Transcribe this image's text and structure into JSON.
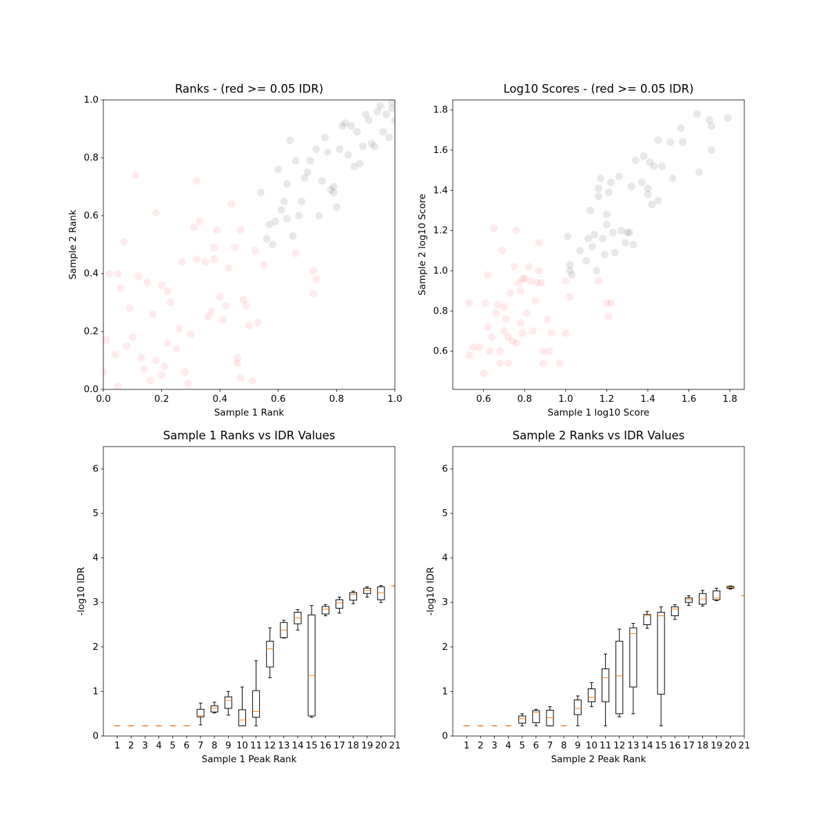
{
  "chart_data": [
    {
      "type": "scatter",
      "title": "Ranks - (red >= 0.05 IDR)",
      "xlabel": "Sample 1 Rank",
      "ylabel": "Sample 2 Rank",
      "xlim": [
        0,
        1
      ],
      "ylim": [
        0,
        1
      ],
      "xticks": [
        {
          "value": 0,
          "label": "0.0"
        },
        0.2,
        0.4,
        0.6,
        0.8,
        {
          "value": 1,
          "label": "1.0"
        }
      ],
      "yticks": [
        {
          "value": 0,
          "label": "0.0"
        },
        0.2,
        0.4,
        0.6,
        0.8,
        {
          "value": 1,
          "label": "1.0"
        }
      ],
      "series": [
        {
          "color": "red",
          "alpha": 0.08,
          "x": [
            0.02,
            0.01,
            0.0,
            0.04,
            0.05,
            0.06,
            0.07,
            0.08,
            0.09,
            0.1,
            0.11,
            0.12,
            0.13,
            0.14,
            0.15,
            0.16,
            0.17,
            0.18,
            0.18,
            0.2,
            0.2,
            0.21,
            0.22,
            0.22,
            0.23,
            0.25,
            0.26,
            0.27,
            0.28,
            0.29,
            0.3,
            0.31,
            0.32,
            0.32,
            0.33,
            0.35,
            0.36,
            0.37,
            0.38,
            0.39,
            0.4,
            0.41,
            0.42,
            0.43,
            0.44,
            0.45,
            0.46,
            0.47,
            0.48,
            0.49,
            0.5,
            0.51,
            0.52,
            0.53,
            0.55,
            0.66,
            0.72,
            0.73,
            0.72,
            0.05,
            0.47,
            0.38,
            0.46
          ],
          "y": [
            0.4,
            0.17,
            0.06,
            0.12,
            0.4,
            0.35,
            0.51,
            0.15,
            0.28,
            0.18,
            0.74,
            0.39,
            0.11,
            0.07,
            0.37,
            0.03,
            0.26,
            0.1,
            0.61,
            0.05,
            0.36,
            0.08,
            0.34,
            0.16,
            0.3,
            0.14,
            0.21,
            0.44,
            0.06,
            0.02,
            0.19,
            0.56,
            0.72,
            0.45,
            0.58,
            0.44,
            0.25,
            0.27,
            0.49,
            0.55,
            0.32,
            0.24,
            0.29,
            0.42,
            0.64,
            0.49,
            0.09,
            0.04,
            0.31,
            0.29,
            0.22,
            0.03,
            0.48,
            0.23,
            0.43,
            0.47,
            0.41,
            0.38,
            0.33,
            0.01,
            0.55,
            0.45,
            0.11
          ]
        },
        {
          "color": "black",
          "alpha": 0.09,
          "x": [
            0.54,
            0.56,
            0.57,
            0.58,
            0.59,
            0.6,
            0.61,
            0.62,
            0.63,
            0.64,
            0.65,
            0.66,
            0.67,
            0.68,
            0.69,
            0.7,
            0.71,
            0.73,
            0.74,
            0.75,
            0.76,
            0.77,
            0.78,
            0.79,
            0.8,
            0.81,
            0.82,
            0.83,
            0.84,
            0.85,
            0.86,
            0.87,
            0.88,
            0.89,
            0.9,
            0.91,
            0.92,
            0.93,
            0.94,
            0.95,
            0.96,
            0.97,
            0.98,
            0.99,
            1.0,
            0.99,
            0.79,
            0.63
          ],
          "y": [
            0.68,
            0.52,
            0.57,
            0.5,
            0.58,
            0.76,
            0.62,
            0.65,
            0.71,
            0.86,
            0.53,
            0.79,
            0.6,
            0.65,
            0.73,
            0.75,
            0.79,
            0.83,
            0.6,
            0.72,
            0.87,
            0.82,
            0.69,
            0.7,
            0.63,
            0.83,
            0.91,
            0.92,
            0.81,
            0.91,
            0.77,
            0.89,
            0.78,
            0.84,
            0.95,
            0.93,
            0.85,
            0.84,
            0.96,
            0.98,
            0.89,
            0.95,
            0.87,
            0.97,
            0.93,
            0.99,
            0.68,
            0.59
          ]
        }
      ]
    },
    {
      "type": "scatter",
      "title": "Log10 Scores - (red >= 0.05 IDR)",
      "xlabel": "Sample 1 log10 Score",
      "ylabel": "Sample 2 log10 Score",
      "xlim": [
        0.45,
        1.87
      ],
      "ylim": [
        0.41,
        1.85
      ],
      "xticks": [
        0.6,
        0.8,
        {
          "value": 1,
          "label": "1.0"
        },
        1.2,
        1.4,
        1.6,
        1.8
      ],
      "yticks": [
        0.6,
        0.8,
        {
          "value": 1,
          "label": "1.0"
        },
        1.2,
        1.4,
        1.6,
        1.8
      ],
      "series": [
        {
          "color": "red",
          "alpha": 0.08,
          "x": [
            0.53,
            0.53,
            0.55,
            0.58,
            0.6,
            0.61,
            0.62,
            0.62,
            0.63,
            0.64,
            0.65,
            0.66,
            0.67,
            0.68,
            0.68,
            0.69,
            0.7,
            0.7,
            0.71,
            0.72,
            0.72,
            0.73,
            0.74,
            0.75,
            0.76,
            0.77,
            0.78,
            0.79,
            0.8,
            0.81,
            0.82,
            0.83,
            0.84,
            0.85,
            0.86,
            0.87,
            0.88,
            0.89,
            0.89,
            0.91,
            0.92,
            0.93,
            0.97,
            1.0,
            1.0,
            1.02,
            1.16,
            1.2,
            1.21,
            1.22,
            0.87,
            0.79,
            0.76,
            0.78
          ],
          "y": [
            0.58,
            0.84,
            0.62,
            0.62,
            0.49,
            0.84,
            0.98,
            0.72,
            0.6,
            0.67,
            1.21,
            0.79,
            0.83,
            0.6,
            0.54,
            1.1,
            0.7,
            0.82,
            0.76,
            0.54,
            0.67,
            0.89,
            0.65,
            1.02,
            1.2,
            0.94,
            0.9,
            0.69,
            0.96,
            0.79,
            1.02,
            0.95,
            0.7,
            0.85,
            0.94,
            1.0,
            0.94,
            0.6,
            0.54,
            0.76,
            0.6,
            0.69,
            0.54,
            0.95,
            0.69,
            0.87,
            0.95,
            0.84,
            0.77,
            0.84,
            1.14,
            0.96,
            0.64,
            0.74
          ]
        },
        {
          "color": "black",
          "alpha": 0.09,
          "x": [
            1.01,
            1.02,
            1.02,
            1.03,
            1.07,
            1.1,
            1.11,
            1.12,
            1.13,
            1.14,
            1.15,
            1.16,
            1.17,
            1.18,
            1.19,
            1.2,
            1.2,
            1.21,
            1.22,
            1.24,
            1.26,
            1.27,
            1.29,
            1.3,
            1.31,
            1.32,
            1.33,
            1.34,
            1.37,
            1.38,
            1.4,
            1.4,
            1.41,
            1.42,
            1.43,
            1.45,
            1.45,
            1.47,
            1.51,
            1.52,
            1.56,
            1.57,
            1.64,
            1.65,
            1.7,
            1.71,
            1.71,
            1.79,
            1.16,
            1.23
          ],
          "y": [
            1.17,
            1.0,
            1.03,
            0.98,
            1.1,
            1.05,
            1.16,
            1.3,
            1.12,
            1.18,
            1.0,
            1.37,
            1.46,
            1.16,
            1.08,
            1.23,
            1.28,
            1.39,
            1.44,
            1.09,
            1.47,
            1.2,
            1.14,
            1.19,
            1.19,
            1.42,
            1.13,
            1.55,
            1.44,
            1.57,
            1.41,
            1.38,
            1.54,
            1.33,
            1.52,
            1.35,
            1.65,
            1.52,
            1.64,
            1.46,
            1.71,
            1.64,
            1.78,
            1.49,
            1.75,
            1.72,
            1.6,
            1.76,
            1.41,
            1.19
          ]
        }
      ]
    },
    {
      "type": "box",
      "title": "Sample 1 Ranks vs IDR Values",
      "xlabel": "Sample 1 Peak Rank",
      "ylabel": "-log10 IDR",
      "xlim": [
        0,
        21
      ],
      "ylim": [
        0,
        6.5
      ],
      "yticks": [
        0,
        1,
        2,
        3,
        4,
        5,
        6
      ],
      "median_color": "#ff7f0e",
      "categories": [
        "1",
        "2",
        "3",
        "4",
        "5",
        "6",
        "7",
        "8",
        "9",
        "10",
        "11",
        "12",
        "13",
        "14",
        "15",
        "16",
        "17",
        "18",
        "19",
        "20",
        "21"
      ],
      "boxes": [
        {
          "whislo": 0.23,
          "q1": 0.23,
          "med": 0.23,
          "q3": 0.23,
          "whishi": 0.23
        },
        {
          "whislo": 0.23,
          "q1": 0.23,
          "med": 0.23,
          "q3": 0.23,
          "whishi": 0.23
        },
        {
          "whislo": 0.23,
          "q1": 0.23,
          "med": 0.23,
          "q3": 0.23,
          "whishi": 0.23
        },
        {
          "whislo": 0.23,
          "q1": 0.23,
          "med": 0.23,
          "q3": 0.23,
          "whishi": 0.23
        },
        {
          "whislo": 0.23,
          "q1": 0.23,
          "med": 0.23,
          "q3": 0.23,
          "whishi": 0.23
        },
        {
          "whislo": 0.23,
          "q1": 0.23,
          "med": 0.23,
          "q3": 0.23,
          "whishi": 0.23
        },
        {
          "whislo": 0.25,
          "q1": 0.43,
          "med": 0.46,
          "q3": 0.6,
          "whishi": 0.74
        },
        {
          "whislo": 0.52,
          "q1": 0.54,
          "med": 0.63,
          "q3": 0.68,
          "whishi": 0.76
        },
        {
          "whislo": 0.47,
          "q1": 0.62,
          "med": 0.8,
          "q3": 0.88,
          "whishi": 1.0
        },
        {
          "whislo": 0.23,
          "q1": 0.23,
          "med": 0.36,
          "q3": 0.59,
          "whishi": 1.1
        },
        {
          "whislo": 0.23,
          "q1": 0.42,
          "med": 0.55,
          "q3": 1.02,
          "whishi": 1.69
        },
        {
          "whislo": 1.31,
          "q1": 1.55,
          "med": 1.96,
          "q3": 2.13,
          "whishi": 2.43
        },
        {
          "whislo": 2.2,
          "q1": 2.21,
          "med": 2.38,
          "q3": 2.55,
          "whishi": 2.6
        },
        {
          "whislo": 2.38,
          "q1": 2.52,
          "med": 2.65,
          "q3": 2.78,
          "whishi": 2.84
        },
        {
          "whislo": 0.42,
          "q1": 0.45,
          "med": 1.36,
          "q3": 2.72,
          "whishi": 2.93
        },
        {
          "whislo": 2.7,
          "q1": 2.74,
          "med": 2.85,
          "q3": 2.91,
          "whishi": 2.95
        },
        {
          "whislo": 2.76,
          "q1": 2.87,
          "med": 2.99,
          "q3": 3.06,
          "whishi": 3.12
        },
        {
          "whislo": 2.97,
          "q1": 3.05,
          "med": 3.18,
          "q3": 3.22,
          "whishi": 3.25
        },
        {
          "whislo": 3.12,
          "q1": 3.2,
          "med": 3.27,
          "q3": 3.32,
          "whishi": 3.35
        },
        {
          "whislo": 3.0,
          "q1": 3.06,
          "med": 3.22,
          "q3": 3.35,
          "whishi": 3.38
        },
        {
          "whislo": 3.37,
          "q1": 3.37,
          "med": 3.37,
          "q3": 3.37,
          "whishi": 3.37
        }
      ]
    },
    {
      "type": "box",
      "title": "Sample 2 Ranks vs IDR Values",
      "xlabel": "Sample 2 Peak Rank",
      "ylabel": "-log10 IDR",
      "xlim": [
        0,
        21
      ],
      "ylim": [
        0,
        6.5
      ],
      "yticks": [
        0,
        1,
        2,
        3,
        4,
        5,
        6
      ],
      "median_color": "#ff7f0e",
      "categories": [
        "1",
        "2",
        "3",
        "4",
        "5",
        "6",
        "7",
        "8",
        "9",
        "10",
        "11",
        "12",
        "13",
        "14",
        "15",
        "16",
        "17",
        "18",
        "19",
        "20",
        "21"
      ],
      "boxes": [
        {
          "whislo": 0.23,
          "q1": 0.23,
          "med": 0.23,
          "q3": 0.23,
          "whishi": 0.23
        },
        {
          "whislo": 0.23,
          "q1": 0.23,
          "med": 0.23,
          "q3": 0.23,
          "whishi": 0.23
        },
        {
          "whislo": 0.23,
          "q1": 0.23,
          "med": 0.23,
          "q3": 0.23,
          "whishi": 0.23
        },
        {
          "whislo": 0.23,
          "q1": 0.23,
          "med": 0.23,
          "q3": 0.23,
          "whishi": 0.23
        },
        {
          "whislo": 0.23,
          "q1": 0.29,
          "med": 0.39,
          "q3": 0.45,
          "whishi": 0.5
        },
        {
          "whislo": 0.23,
          "q1": 0.3,
          "med": 0.53,
          "q3": 0.57,
          "whishi": 0.6
        },
        {
          "whislo": 0.23,
          "q1": 0.23,
          "med": 0.41,
          "q3": 0.58,
          "whishi": 0.66
        },
        {
          "whislo": 0.23,
          "q1": 0.23,
          "med": 0.23,
          "q3": 0.23,
          "whishi": 0.23
        },
        {
          "whislo": 0.23,
          "q1": 0.48,
          "med": 0.62,
          "q3": 0.81,
          "whishi": 0.9
        },
        {
          "whislo": 0.66,
          "q1": 0.77,
          "med": 0.87,
          "q3": 1.06,
          "whishi": 1.2
        },
        {
          "whislo": 0.23,
          "q1": 0.77,
          "med": 1.31,
          "q3": 1.51,
          "whishi": 1.84
        },
        {
          "whislo": 0.43,
          "q1": 0.5,
          "med": 1.35,
          "q3": 2.13,
          "whishi": 2.4
        },
        {
          "whislo": 0.5,
          "q1": 1.1,
          "med": 2.3,
          "q3": 2.43,
          "whishi": 2.53
        },
        {
          "whislo": 2.42,
          "q1": 2.5,
          "med": 2.7,
          "q3": 2.73,
          "whishi": 2.8
        },
        {
          "whislo": 0.23,
          "q1": 0.94,
          "med": 2.7,
          "q3": 2.78,
          "whishi": 2.9
        },
        {
          "whislo": 2.62,
          "q1": 2.7,
          "med": 2.85,
          "q3": 2.9,
          "whishi": 2.95
        },
        {
          "whislo": 2.93,
          "q1": 3.0,
          "med": 3.06,
          "q3": 3.1,
          "whishi": 3.15
        },
        {
          "whislo": 2.92,
          "q1": 2.96,
          "med": 3.08,
          "q3": 3.2,
          "whishi": 3.27
        },
        {
          "whislo": 3.04,
          "q1": 3.06,
          "med": 3.1,
          "q3": 3.26,
          "whishi": 3.32
        },
        {
          "whislo": 3.3,
          "q1": 3.32,
          "med": 3.34,
          "q3": 3.36,
          "whishi": 3.37
        },
        {
          "whislo": 3.15,
          "q1": 3.15,
          "med": 3.15,
          "q3": 3.15,
          "whishi": 3.15
        }
      ]
    }
  ]
}
